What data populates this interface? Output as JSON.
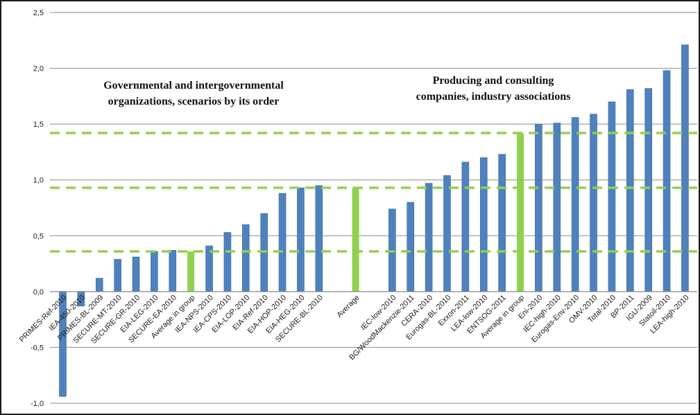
{
  "chart_data": {
    "type": "bar",
    "title": "",
    "xlabel": "",
    "ylabel": "",
    "ylim": [
      -1.0,
      2.5
    ],
    "yticks": [
      -1.0,
      -0.5,
      0.0,
      0.5,
      1.0,
      1.5,
      2.0,
      2.5
    ],
    "ytick_labels": [
      "-1,0",
      "-0,5",
      "0,0",
      "0,5",
      "1,0",
      "1,5",
      "2,0",
      "2,5"
    ],
    "grid": "horizontal",
    "legend": "none",
    "categories": [
      "PRIMES-Ref-2010",
      "IEA-450-2010",
      "PRIMES-BL-2009",
      "SECURE-MT-2010",
      "SECURE-GR-2010",
      "EIA-LEG-2010",
      "SECURE-EA-2010",
      "Average in group",
      "IEA-NPS-2010",
      "IEA-CPS-2010",
      "EIA-LOP-2010",
      "EIA-Ref-2010",
      "EIA-HOP-2010",
      "EIA-HEG-2010",
      "SECURE-BL-2010",
      "",
      "Average",
      "",
      "IEC-low-2010",
      "BG/WoodMackenzie-2011",
      "CERA-2010",
      "Eurogas-BL-2010",
      "Exxon-2011",
      "LEA-low-2010",
      "ENTSOG-2011",
      "Average in group",
      "Eni-2010",
      "IEC-high-2010",
      "Eurogas-Env-2010",
      "OMV-2010",
      "Total-2010",
      "BP-2011",
      "IGU-2009",
      "Statoil-2010",
      "LEA-high-2010"
    ],
    "values": [
      -0.94,
      -0.13,
      0.12,
      0.29,
      0.31,
      0.36,
      0.37,
      0.36,
      0.41,
      0.53,
      0.6,
      0.7,
      0.88,
      0.93,
      0.95,
      null,
      0.93,
      null,
      0.74,
      0.8,
      0.97,
      1.04,
      1.16,
      1.2,
      1.23,
      1.42,
      1.5,
      1.51,
      1.56,
      1.59,
      1.7,
      1.81,
      1.82,
      1.98,
      2.21
    ],
    "highlight": [
      false,
      false,
      false,
      false,
      false,
      false,
      false,
      true,
      false,
      false,
      false,
      false,
      false,
      false,
      false,
      false,
      true,
      false,
      false,
      false,
      false,
      false,
      false,
      false,
      false,
      true,
      false,
      false,
      false,
      false,
      false,
      false,
      false,
      false,
      false
    ],
    "reference_lines": [
      0.36,
      0.93,
      1.42
    ],
    "annotations": [
      {
        "lines": [
          "Governmental and intergovernmental",
          "organizations, scenarios by its order"
        ]
      },
      {
        "lines": [
          "Producing and consulting",
          "companies, industry associations"
        ]
      }
    ],
    "colors": {
      "bar": "#4f81bd",
      "bar_edge": "#3a6aa5",
      "highlight": "#92d050",
      "reference_line": "#92d050",
      "grid": "#8c8c8c",
      "axis": "#808080",
      "text": "#1a1a1a"
    }
  }
}
